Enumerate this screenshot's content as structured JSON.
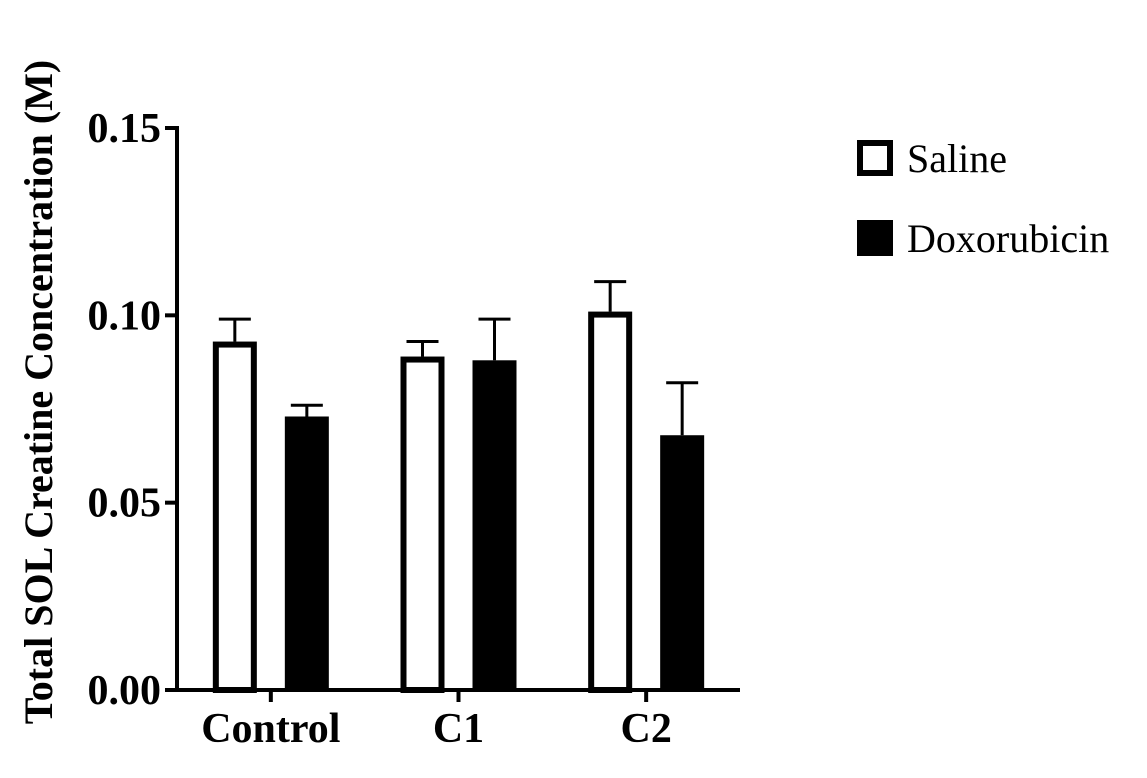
{
  "chart_data": {
    "type": "bar",
    "title": "",
    "xlabel": "",
    "ylabel": "Total SOL Creatine Concentration (M)",
    "categories": [
      "Control",
      "C1",
      "C2"
    ],
    "ylim": [
      0,
      0.15
    ],
    "yticks": [
      "0.00",
      "0.05",
      "0.10",
      "0.15"
    ],
    "series": [
      {
        "name": "Saline",
        "style": "outline",
        "color": "#000000",
        "values": [
          0.093,
          0.089,
          0.101
        ],
        "errors": [
          0.006,
          0.004,
          0.008
        ]
      },
      {
        "name": "Doxorubicin",
        "style": "filled",
        "color": "#000000",
        "values": [
          0.073,
          0.088,
          0.068
        ],
        "errors": [
          0.003,
          0.011,
          0.014
        ]
      }
    ],
    "legend_position": "right",
    "grid": false
  }
}
